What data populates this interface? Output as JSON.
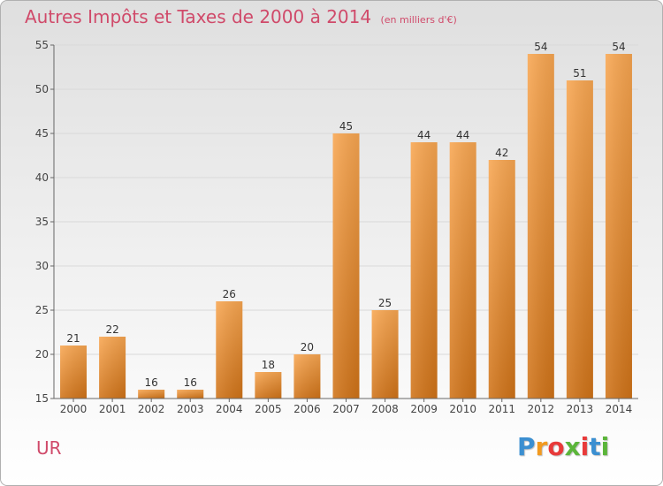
{
  "header": {
    "title": "Autres Impôts et Taxes de 2000 à 2014",
    "subtitle": "(en milliers d'€)"
  },
  "footer": {
    "commune": "UR",
    "logo": "Proxiti"
  },
  "colors": {
    "bar_top": "#f8a651",
    "bar_bottom": "#d07318",
    "text_accent": "#d04a6a"
  },
  "chart_data": {
    "type": "bar",
    "categories": [
      "2000",
      "2001",
      "2002",
      "2003",
      "2004",
      "2005",
      "2006",
      "2007",
      "2008",
      "2009",
      "2010",
      "2011",
      "2012",
      "2013",
      "2014"
    ],
    "values": [
      21,
      22,
      16,
      16,
      26,
      18,
      20,
      45,
      25,
      44,
      44,
      42,
      54,
      51,
      54
    ],
    "title": "Autres Impôts et Taxes de 2000 à 2014",
    "ylim": [
      15,
      55
    ],
    "yticks": [
      15,
      20,
      25,
      30,
      35,
      40,
      45,
      50,
      55
    ],
    "grid": true,
    "legend": "none"
  }
}
